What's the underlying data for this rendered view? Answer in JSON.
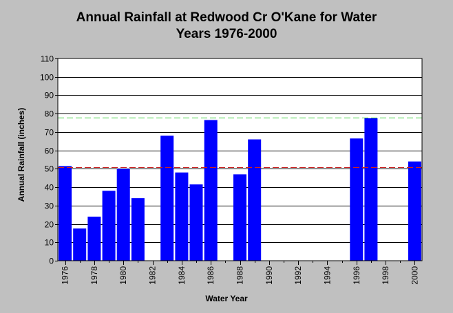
{
  "chart_data": {
    "type": "bar",
    "title_lines": [
      "Annual Rainfall at Redwood Cr O'Kane for Water",
      "Years 1976-2000"
    ],
    "xlabel": "Water Year",
    "ylabel": "Annual Rainfall (inches)",
    "ylim": [
      0,
      110
    ],
    "yticks": [
      0,
      10,
      20,
      30,
      40,
      50,
      60,
      70,
      80,
      90,
      100,
      110
    ],
    "xticks": [
      "1976",
      "1978",
      "1980",
      "1982",
      "1984",
      "1986",
      "1988",
      "1990",
      "1992",
      "1994",
      "1996",
      "1998",
      "2000"
    ],
    "categories": [
      "1976",
      "1977",
      "1978",
      "1979",
      "1980",
      "1981",
      "1982",
      "1983",
      "1984",
      "1985",
      "1986",
      "1987",
      "1988",
      "1989",
      "1990",
      "1991",
      "1992",
      "1993",
      "1994",
      "1995",
      "1996",
      "1997",
      "1998",
      "1999",
      "2000"
    ],
    "values": [
      51.5,
      17.5,
      24,
      38,
      50,
      34,
      null,
      68,
      48,
      41.5,
      76.5,
      null,
      47,
      66,
      null,
      null,
      null,
      null,
      null,
      null,
      66.5,
      77.5,
      null,
      null,
      54
    ],
    "bar_color": "#0000ff",
    "reference_lines": [
      {
        "value": 78,
        "color": "#33cc33",
        "style": "dashed"
      },
      {
        "value": 51,
        "color": "#cc2222",
        "style": "dashed"
      }
    ],
    "grid": true,
    "legend": "none"
  }
}
